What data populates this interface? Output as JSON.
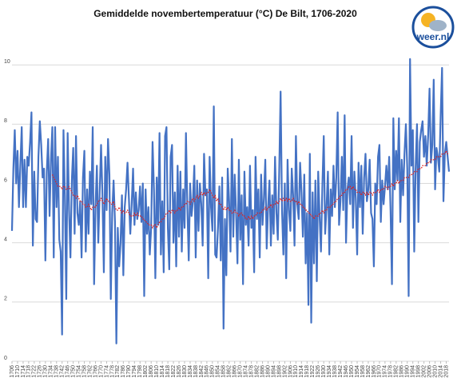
{
  "chart_data": {
    "type": "line",
    "title": "Gemiddelde novembertemperatuur (°C) De Bilt, 1706-2020",
    "logo": "weer.nl",
    "grid": true,
    "xlim": [
      1706,
      2020
    ],
    "ylim": [
      0,
      10.6
    ],
    "yticks": [
      0,
      2,
      4,
      6,
      8,
      10
    ],
    "xticks": [
      1706,
      1710,
      1714,
      1718,
      1722,
      1726,
      1730,
      1734,
      1738,
      1742,
      1746,
      1750,
      1754,
      1758,
      1762,
      1766,
      1770,
      1774,
      1778,
      1782,
      1786,
      1790,
      1794,
      1798,
      1802,
      1806,
      1810,
      1814,
      1818,
      1822,
      1826,
      1830,
      1834,
      1838,
      1842,
      1846,
      1850,
      1854,
      1858,
      1862,
      1866,
      1870,
      1874,
      1878,
      1882,
      1886,
      1890,
      1894,
      1898,
      1902,
      1906,
      1910,
      1914,
      1918,
      1922,
      1926,
      1930,
      1934,
      1938,
      1942,
      1946,
      1950,
      1954,
      1958,
      1962,
      1966,
      1970,
      1974,
      1978,
      1982,
      1986,
      1990,
      1994,
      1998,
      2002,
      2006,
      2010,
      2014,
      2018
    ],
    "x": [
      1706,
      1707,
      1708,
      1709,
      1710,
      1711,
      1712,
      1713,
      1714,
      1715,
      1716,
      1717,
      1718,
      1719,
      1720,
      1721,
      1722,
      1723,
      1724,
      1725,
      1726,
      1727,
      1728,
      1729,
      1730,
      1731,
      1732,
      1733,
      1734,
      1735,
      1736,
      1737,
      1738,
      1739,
      1740,
      1741,
      1742,
      1743,
      1744,
      1745,
      1746,
      1747,
      1748,
      1749,
      1750,
      1751,
      1752,
      1753,
      1754,
      1755,
      1756,
      1757,
      1758,
      1759,
      1760,
      1761,
      1762,
      1763,
      1764,
      1765,
      1766,
      1767,
      1768,
      1769,
      1770,
      1771,
      1772,
      1773,
      1774,
      1775,
      1776,
      1777,
      1778,
      1779,
      1780,
      1781,
      1782,
      1783,
      1784,
      1785,
      1786,
      1787,
      1788,
      1789,
      1790,
      1791,
      1792,
      1793,
      1794,
      1795,
      1796,
      1797,
      1798,
      1799,
      1800,
      1801,
      1802,
      1803,
      1804,
      1805,
      1806,
      1807,
      1808,
      1809,
      1810,
      1811,
      1812,
      1813,
      1814,
      1815,
      1816,
      1817,
      1818,
      1819,
      1820,
      1821,
      1822,
      1823,
      1824,
      1825,
      1826,
      1827,
      1828,
      1829,
      1830,
      1831,
      1832,
      1833,
      1834,
      1835,
      1836,
      1837,
      1838,
      1839,
      1840,
      1841,
      1842,
      1843,
      1844,
      1845,
      1846,
      1847,
      1848,
      1849,
      1850,
      1851,
      1852,
      1853,
      1854,
      1855,
      1856,
      1857,
      1858,
      1859,
      1860,
      1861,
      1862,
      1863,
      1864,
      1865,
      1866,
      1867,
      1868,
      1869,
      1870,
      1871,
      1872,
      1873,
      1874,
      1875,
      1876,
      1877,
      1878,
      1879,
      1880,
      1881,
      1882,
      1883,
      1884,
      1885,
      1886,
      1887,
      1888,
      1889,
      1890,
      1891,
      1892,
      1893,
      1894,
      1895,
      1896,
      1897,
      1898,
      1899,
      1900,
      1901,
      1902,
      1903,
      1904,
      1905,
      1906,
      1907,
      1908,
      1909,
      1910,
      1911,
      1912,
      1913,
      1914,
      1915,
      1916,
      1917,
      1918,
      1919,
      1920,
      1921,
      1922,
      1923,
      1924,
      1925,
      1926,
      1927,
      1928,
      1929,
      1930,
      1931,
      1932,
      1933,
      1934,
      1935,
      1936,
      1937,
      1938,
      1939,
      1940,
      1941,
      1942,
      1943,
      1944,
      1945,
      1946,
      1947,
      1948,
      1949,
      1950,
      1951,
      1952,
      1953,
      1954,
      1955,
      1956,
      1957,
      1958,
      1959,
      1960,
      1961,
      1962,
      1963,
      1964,
      1965,
      1966,
      1967,
      1968,
      1969,
      1970,
      1971,
      1972,
      1973,
      1974,
      1975,
      1976,
      1977,
      1978,
      1979,
      1980,
      1981,
      1982,
      1983,
      1984,
      1985,
      1986,
      1987,
      1988,
      1989,
      1990,
      1991,
      1992,
      1993,
      1994,
      1995,
      1996,
      1997,
      1998,
      1999,
      2000,
      2001,
      2002,
      2003,
      2004,
      2005,
      2006,
      2007,
      2008,
      2009,
      2010,
      2011,
      2012,
      2013,
      2014,
      2015,
      2016,
      2017,
      2018,
      2019,
      2020
    ],
    "series": [
      {
        "color": "#4472c4",
        "style": "solid",
        "values": [
          4.4,
          6.5,
          7.8,
          6.0,
          7.1,
          5.2,
          6.6,
          7.9,
          5.2,
          6.8,
          5.2,
          6.9,
          6.6,
          7.4,
          8.4,
          3.9,
          6.4,
          4.8,
          4.7,
          6.9,
          8.1,
          7.3,
          6.2,
          6.5,
          3.4,
          6.4,
          7.5,
          4.9,
          6.8,
          7.9,
          3.5,
          7.9,
          5.2,
          6.9,
          4.1,
          3.7,
          0.9,
          7.8,
          5.6,
          2.1,
          7.7,
          5.1,
          3.5,
          6.1,
          7.2,
          4.3,
          7.6,
          5.0,
          4.6,
          5.4,
          3.5,
          6.2,
          7.1,
          3.7,
          5.8,
          4.3,
          6.4,
          5.3,
          7.9,
          2.6,
          5.2,
          6.6,
          4.0,
          5.7,
          7.3,
          5.6,
          3.0,
          6.9,
          5.1,
          7.5,
          6.3,
          2.1,
          5.0,
          6.1,
          4.7,
          0.6,
          4.5,
          3.2,
          4.0,
          5.6,
          2.9,
          5.2,
          5.8,
          6.7,
          5.5,
          4.3,
          5.3,
          6.5,
          4.6,
          5.7,
          4.8,
          5.1,
          5.9,
          4.7,
          6.0,
          2.2,
          5.8,
          4.3,
          5.2,
          3.6,
          4.5,
          7.4,
          5.8,
          2.8,
          6.2,
          4.6,
          7.7,
          3.6,
          5.4,
          3.0,
          7.6,
          7.9,
          4.5,
          3.1,
          6.9,
          7.3,
          4.0,
          5.7,
          3.2,
          6.6,
          4.2,
          6.4,
          3.7,
          5.8,
          4.5,
          7.7,
          5.2,
          3.4,
          6.0,
          4.9,
          5.4,
          6.6,
          3.5,
          6.1,
          4.4,
          6.0,
          5.3,
          3.9,
          7.0,
          5.6,
          5.8,
          2.8,
          6.9,
          5.2,
          4.4,
          8.6,
          3.6,
          3.5,
          4.5,
          5.9,
          3.4,
          6.2,
          1.1,
          4.8,
          2.9,
          6.5,
          5.4,
          3.7,
          7.5,
          4.2,
          6.3,
          5.0,
          3.3,
          6.8,
          4.1,
          5.6,
          2.6,
          6.4,
          4.6,
          5.2,
          3.9,
          6.6,
          4.5,
          5.1,
          3.0,
          6.9,
          4.8,
          5.8,
          3.5,
          6.3,
          4.6,
          5.5,
          6.8,
          3.8,
          5.2,
          6.1,
          3.9,
          5.6,
          4.3,
          6.9,
          5.0,
          4.1,
          6.4,
          9.1,
          5.1,
          3.6,
          6.0,
          2.8,
          6.8,
          5.1,
          4.4,
          6.5,
          5.6,
          3.9,
          7.6,
          5.3,
          4.8,
          6.7,
          5.7,
          4.2,
          6.3,
          3.3,
          5.0,
          1.9,
          7.0,
          1.3,
          5.7,
          3.3,
          6.1,
          2.7,
          6.4,
          4.9,
          3.7,
          5.9,
          7.6,
          4.3,
          5.2,
          6.4,
          3.6,
          5.8,
          4.9,
          6.6,
          5.2,
          6.2,
          8.4,
          4.6,
          5.4,
          6.9,
          5.1,
          8.3,
          4.0,
          5.8,
          6.2,
          5.3,
          7.6,
          4.5,
          6.4,
          5.5,
          3.6,
          6.7,
          5.2,
          6.6,
          4.3,
          6.2,
          7.0,
          5.4,
          5.8,
          6.8,
          5.0,
          4.8,
          3.2,
          6.0,
          5.3,
          6.9,
          7.3,
          4.7,
          6.1,
          5.3,
          5.9,
          6.6,
          5.8,
          6.9,
          5.1,
          2.6,
          8.2,
          5.8,
          7.1,
          6.1,
          8.2,
          4.7,
          6.8,
          5.6,
          7.0,
          8.0,
          6.5,
          2.2,
          10.2,
          6.6,
          7.8,
          3.7,
          6.5,
          8.0,
          4.7,
          7.4,
          7.8,
          8.1,
          6.9,
          7.6,
          6.6,
          7.6,
          9.2,
          6.7,
          7.3,
          9.5,
          5.8,
          7.2,
          6.9,
          6.4,
          8.3,
          9.9,
          5.4,
          7.0,
          7.4,
          6.9,
          6.4
        ]
      },
      {
        "color": "#e0201b",
        "style": "dotted",
        "values": [
          null,
          null,
          null,
          null,
          null,
          null,
          null,
          null,
          null,
          null,
          null,
          null,
          null,
          null,
          null,
          null,
          null,
          null,
          null,
          null,
          null,
          null,
          null,
          null,
          null,
          null,
          null,
          null,
          null,
          6.3,
          6.2,
          6.1,
          6.0,
          5.9,
          5.9,
          5.9,
          5.8,
          5.9,
          5.9,
          5.8,
          5.8,
          5.9,
          5.8,
          5.7,
          5.6,
          5.6,
          5.5,
          5.6,
          5.5,
          5.4,
          5.4,
          5.3,
          5.3,
          5.2,
          5.2,
          5.3,
          5.2,
          5.1,
          5.2,
          5.2,
          5.2,
          5.3,
          5.4,
          5.4,
          5.5,
          5.4,
          5.3,
          5.4,
          5.5,
          5.4,
          5.4,
          5.3,
          5.3,
          5.4,
          5.2,
          5.1,
          5.1,
          5.2,
          5.1,
          5.0,
          5.1,
          5.0,
          5.0,
          5.1,
          5.0,
          4.9,
          4.9,
          4.9,
          5.0,
          4.9,
          5.0,
          4.9,
          4.9,
          4.9,
          4.8,
          4.8,
          4.7,
          4.7,
          4.6,
          4.6,
          4.6,
          4.5,
          4.6,
          4.6,
          4.5,
          4.6,
          4.7,
          4.7,
          4.8,
          4.8,
          4.9,
          5.0,
          5.0,
          5.1,
          5.0,
          5.1,
          5.1,
          5.0,
          5.1,
          5.1,
          5.2,
          5.1,
          5.2,
          5.2,
          5.3,
          5.3,
          5.4,
          5.4,
          5.3,
          5.4,
          5.5,
          5.4,
          5.5,
          5.6,
          5.5,
          5.6,
          5.7,
          5.6,
          5.7,
          5.6,
          5.7,
          5.7,
          5.8,
          5.7,
          5.6,
          5.5,
          5.6,
          5.4,
          5.5,
          5.3,
          5.3,
          5.2,
          5.1,
          5.2,
          5.1,
          5.2,
          5.1,
          5.1,
          5.0,
          5.0,
          5.1,
          5.0,
          5.0,
          4.9,
          5.0,
          5.0,
          4.9,
          4.9,
          4.8,
          4.8,
          4.9,
          4.8,
          4.9,
          4.8,
          4.9,
          4.9,
          5.0,
          5.0,
          5.0,
          5.0,
          5.1,
          5.1,
          5.2,
          5.1,
          5.2,
          5.2,
          5.3,
          5.2,
          5.3,
          5.3,
          5.4,
          5.3,
          5.4,
          5.5,
          5.4,
          5.5,
          5.4,
          5.5,
          5.4,
          5.5,
          5.4,
          5.4,
          5.5,
          5.4,
          5.4,
          5.3,
          5.4,
          5.3,
          5.3,
          5.2,
          5.2,
          5.1,
          5.1,
          5.0,
          5.0,
          4.9,
          4.9,
          4.8,
          4.9,
          4.9,
          4.9,
          5.0,
          5.0,
          5.1,
          5.0,
          5.1,
          5.1,
          5.2,
          5.2,
          5.2,
          5.3,
          5.3,
          5.4,
          5.4,
          5.5,
          5.5,
          5.6,
          5.6,
          5.7,
          5.7,
          5.8,
          5.8,
          5.9,
          5.9,
          5.8,
          5.9,
          5.8,
          5.8,
          5.7,
          5.7,
          5.7,
          5.6,
          5.7,
          5.7,
          5.6,
          5.7,
          5.6,
          5.7,
          5.7,
          5.6,
          5.7,
          5.7,
          5.7,
          5.8,
          5.7,
          5.8,
          5.8,
          5.8,
          5.9,
          5.9,
          5.8,
          5.9,
          5.9,
          6.0,
          5.9,
          6.0,
          6.0,
          6.1,
          6.0,
          6.1,
          6.1,
          6.1,
          6.2,
          6.2,
          6.2,
          6.2,
          6.3,
          6.3,
          6.3,
          6.4,
          6.4,
          6.4,
          6.5,
          6.5,
          6.5,
          6.6,
          6.6,
          6.6,
          6.7,
          6.7,
          6.7,
          6.8,
          6.8,
          6.8,
          6.8,
          6.9,
          6.9,
          6.9,
          6.9,
          7.0,
          7.0,
          7.0,
          7.1,
          7.0,
          7.0
        ]
      }
    ]
  }
}
